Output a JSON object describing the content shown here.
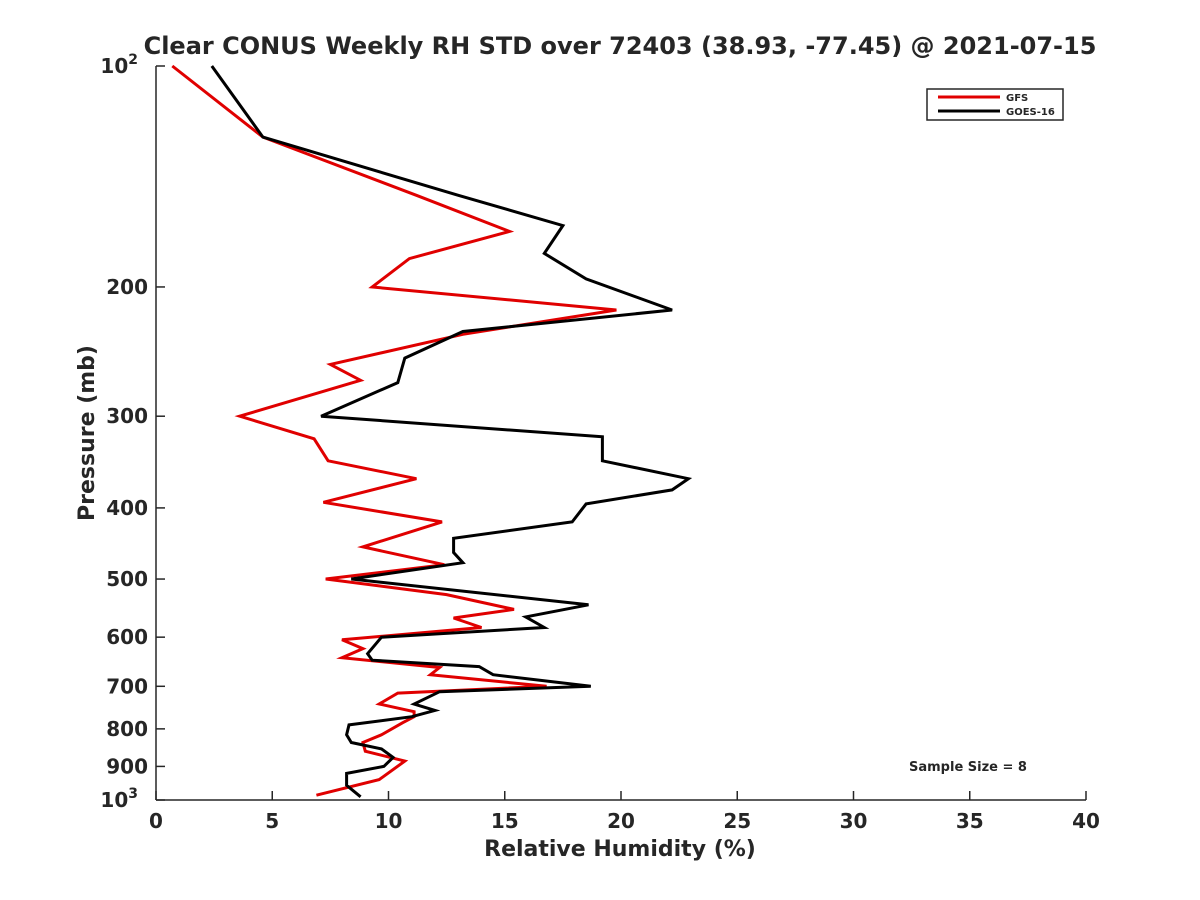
{
  "chart_data": {
    "type": "line",
    "title": "Clear CONUS Weekly RH STD over 72403 (38.93, -77.45) @ 2021-07-15",
    "xlabel": "Relative Humidity (%)",
    "ylabel": "Pressure (mb)",
    "xlim": [
      0,
      40
    ],
    "ylim": [
      100,
      1000
    ],
    "yscale": "log",
    "y_reversed": true,
    "x_ticks": [
      "0",
      "5",
      "10",
      "15",
      "20",
      "25",
      "30",
      "35",
      "40"
    ],
    "y_ticks": [
      {
        "value": 100,
        "base": "10",
        "exp": "2"
      },
      {
        "value": 200,
        "base": "200",
        "exp": ""
      },
      {
        "value": 300,
        "base": "300",
        "exp": ""
      },
      {
        "value": 400,
        "base": "400",
        "exp": ""
      },
      {
        "value": 500,
        "base": "500",
        "exp": ""
      },
      {
        "value": 600,
        "base": "600",
        "exp": ""
      },
      {
        "value": 700,
        "base": "700",
        "exp": ""
      },
      {
        "value": 800,
        "base": "800",
        "exp": ""
      },
      {
        "value": 900,
        "base": "900",
        "exp": ""
      },
      {
        "value": 1000,
        "base": "10",
        "exp": "3"
      }
    ],
    "legend_position": "top-right",
    "grid": false,
    "annotation": "Sample Size = 8",
    "series": [
      {
        "name": "GFS",
        "color": "#e00000",
        "points": [
          [
            0.7,
            100
          ],
          [
            4.6,
            125
          ],
          [
            11.2,
            150
          ],
          [
            15.2,
            168
          ],
          [
            10.9,
            183
          ],
          [
            9.3,
            200
          ],
          [
            19.8,
            215
          ],
          [
            13.2,
            232
          ],
          [
            7.5,
            255
          ],
          [
            8.8,
            268
          ],
          [
            3.6,
            300
          ],
          [
            6.8,
            322
          ],
          [
            7.4,
            345
          ],
          [
            11.2,
            365
          ],
          [
            7.2,
            393
          ],
          [
            12.3,
            418
          ],
          [
            8.9,
            452
          ],
          [
            12.4,
            478
          ],
          [
            7.3,
            500
          ],
          [
            12.5,
            525
          ],
          [
            15.4,
            550
          ],
          [
            12.8,
            565
          ],
          [
            14.0,
            582
          ],
          [
            8.0,
            605
          ],
          [
            8.9,
            622
          ],
          [
            8.0,
            640
          ],
          [
            12.2,
            660
          ],
          [
            11.8,
            675
          ],
          [
            16.8,
            700
          ],
          [
            10.4,
            715
          ],
          [
            9.6,
            740
          ],
          [
            11.1,
            758
          ],
          [
            11.1,
            770
          ],
          [
            10.6,
            785
          ],
          [
            9.7,
            815
          ],
          [
            8.9,
            835
          ],
          [
            9.0,
            858
          ],
          [
            10.7,
            885
          ],
          [
            9.6,
            938
          ],
          [
            6.9,
            985
          ]
        ]
      },
      {
        "name": "GOES-16",
        "color": "#000000",
        "points": [
          [
            2.4,
            100
          ],
          [
            4.6,
            125
          ],
          [
            13.0,
            150
          ],
          [
            17.5,
            165
          ],
          [
            16.7,
            180
          ],
          [
            18.5,
            195
          ],
          [
            22.2,
            215
          ],
          [
            13.2,
            230
          ],
          [
            10.7,
            250
          ],
          [
            10.4,
            270
          ],
          [
            7.1,
            300
          ],
          [
            19.2,
            320
          ],
          [
            19.2,
            345
          ],
          [
            22.9,
            365
          ],
          [
            22.2,
            378
          ],
          [
            18.5,
            395
          ],
          [
            17.9,
            418
          ],
          [
            12.8,
            440
          ],
          [
            12.8,
            460
          ],
          [
            13.2,
            475
          ],
          [
            8.4,
            500
          ],
          [
            18.6,
            542
          ],
          [
            15.9,
            563
          ],
          [
            16.7,
            582
          ],
          [
            9.7,
            600
          ],
          [
            9.1,
            632
          ],
          [
            9.3,
            645
          ],
          [
            13.9,
            658
          ],
          [
            14.5,
            675
          ],
          [
            18.7,
            700
          ],
          [
            12.2,
            712
          ],
          [
            11.1,
            740
          ],
          [
            12.0,
            755
          ],
          [
            11.0,
            770
          ],
          [
            8.3,
            790
          ],
          [
            8.2,
            815
          ],
          [
            8.4,
            835
          ],
          [
            9.7,
            852
          ],
          [
            10.2,
            875
          ],
          [
            9.8,
            900
          ],
          [
            8.2,
            920
          ],
          [
            8.2,
            955
          ],
          [
            8.8,
            990
          ]
        ]
      }
    ]
  }
}
